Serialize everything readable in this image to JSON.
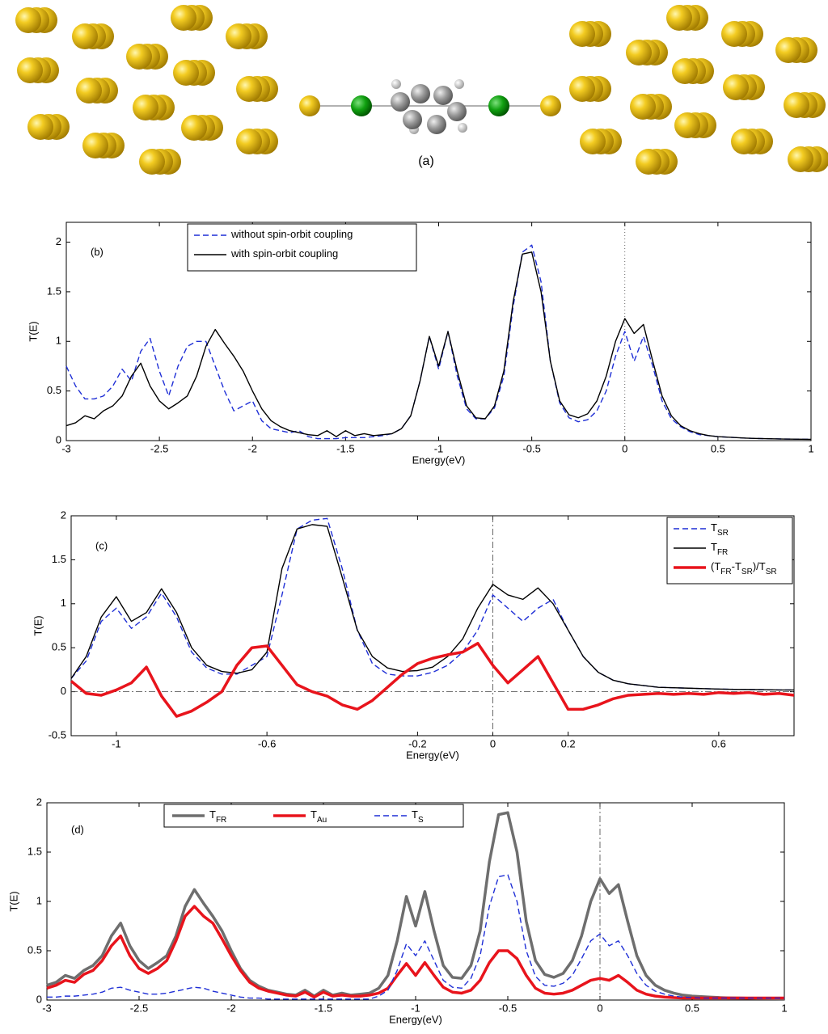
{
  "caption": "(a)",
  "chart_data": [
    {
      "type": "line",
      "label": "(b)",
      "xlabel": "Energy(eV)",
      "ylabel": "T(E)",
      "xlim": [
        -3,
        1
      ],
      "ylim": [
        0,
        2.2
      ],
      "xticks": [
        -3,
        -2.5,
        -2,
        -1.5,
        -1,
        -0.5,
        0,
        0.5,
        1
      ],
      "yticks": [
        0,
        0.5,
        1,
        1.5,
        2
      ],
      "legend": "upper left",
      "ref_lines": [
        {
          "x": 0,
          "style": "dotted"
        }
      ],
      "x": [
        -3,
        -2.95,
        -2.9,
        -2.85,
        -2.8,
        -2.75,
        -2.7,
        -2.65,
        -2.6,
        -2.55,
        -2.5,
        -2.45,
        -2.4,
        -2.35,
        -2.3,
        -2.25,
        -2.2,
        -2.15,
        -2.1,
        -2.05,
        -2,
        -1.95,
        -1.9,
        -1.85,
        -1.8,
        -1.75,
        -1.7,
        -1.65,
        -1.6,
        -1.55,
        -1.5,
        -1.45,
        -1.4,
        -1.35,
        -1.3,
        -1.25,
        -1.2,
        -1.15,
        -1.1,
        -1.05,
        -1,
        -0.95,
        -0.9,
        -0.85,
        -0.8,
        -0.75,
        -0.7,
        -0.65,
        -0.6,
        -0.55,
        -0.5,
        -0.45,
        -0.4,
        -0.35,
        -0.3,
        -0.25,
        -0.2,
        -0.15,
        -0.1,
        -0.05,
        0,
        0.05,
        0.1,
        0.15,
        0.2,
        0.25,
        0.3,
        0.35,
        0.4,
        0.45,
        0.5,
        0.55,
        0.6,
        0.65,
        0.7,
        0.75,
        0.8,
        0.85,
        0.9,
        0.95,
        1
      ],
      "series": [
        {
          "name": "without spin-orbit coupling",
          "color": "#1f2fd6",
          "linestyle": "dashed",
          "values": [
            0.75,
            0.55,
            0.42,
            0.42,
            0.45,
            0.55,
            0.72,
            0.6,
            0.9,
            1.03,
            0.7,
            0.45,
            0.75,
            0.95,
            1.0,
            1.0,
            0.75,
            0.5,
            0.3,
            0.35,
            0.4,
            0.2,
            0.12,
            0.1,
            0.08,
            0.1,
            0.04,
            0.02,
            0.02,
            0.02,
            0.03,
            0.03,
            0.03,
            0.04,
            0.05,
            0.07,
            0.12,
            0.25,
            0.6,
            1.05,
            0.72,
            1.1,
            0.65,
            0.32,
            0.22,
            0.22,
            0.33,
            0.65,
            1.35,
            1.9,
            1.97,
            1.6,
            0.8,
            0.38,
            0.23,
            0.19,
            0.21,
            0.3,
            0.5,
            0.85,
            1.1,
            0.8,
            1.05,
            0.75,
            0.4,
            0.22,
            0.14,
            0.09,
            0.06,
            0.05,
            0.04,
            0.035,
            0.03,
            0.025,
            0.022,
            0.02,
            0.018,
            0.016,
            0.015,
            0.014,
            0.013
          ]
        },
        {
          "name": "with spin-orbit coupling",
          "color": "#000000",
          "linestyle": "solid",
          "values": [
            0.15,
            0.18,
            0.25,
            0.22,
            0.3,
            0.35,
            0.45,
            0.65,
            0.78,
            0.55,
            0.4,
            0.32,
            0.38,
            0.45,
            0.65,
            0.95,
            1.12,
            0.98,
            0.85,
            0.7,
            0.5,
            0.32,
            0.2,
            0.14,
            0.1,
            0.08,
            0.06,
            0.05,
            0.1,
            0.04,
            0.1,
            0.05,
            0.07,
            0.05,
            0.06,
            0.07,
            0.12,
            0.25,
            0.6,
            1.05,
            0.75,
            1.1,
            0.7,
            0.35,
            0.23,
            0.22,
            0.35,
            0.7,
            1.4,
            1.88,
            1.9,
            1.5,
            0.8,
            0.4,
            0.26,
            0.23,
            0.27,
            0.4,
            0.65,
            1.0,
            1.23,
            1.08,
            1.17,
            0.8,
            0.45,
            0.25,
            0.15,
            0.1,
            0.07,
            0.05,
            0.04,
            0.035,
            0.03,
            0.025,
            0.022,
            0.02,
            0.018,
            0.016,
            0.015,
            0.014,
            0.013
          ]
        }
      ]
    },
    {
      "type": "line",
      "label": "(c)",
      "xlabel": "Energy(eV)",
      "ylabel": "T(E)",
      "xlim": [
        -1.12,
        0.8
      ],
      "ylim": [
        -0.5,
        2
      ],
      "xticks": [
        -1,
        -0.6,
        -0.2,
        0,
        0.2,
        0.6
      ],
      "yticks": [
        -0.5,
        0,
        0.5,
        1,
        1.5,
        2
      ],
      "legend": "upper right",
      "ref_lines": [
        {
          "x": 0,
          "style": "dashdot"
        },
        {
          "y": 0,
          "style": "dashdot"
        }
      ],
      "x": [
        -1.12,
        -1.08,
        -1.04,
        -1,
        -0.96,
        -0.92,
        -0.88,
        -0.84,
        -0.8,
        -0.76,
        -0.72,
        -0.68,
        -0.64,
        -0.6,
        -0.56,
        -0.52,
        -0.48,
        -0.44,
        -0.4,
        -0.36,
        -0.32,
        -0.28,
        -0.24,
        -0.2,
        -0.16,
        -0.12,
        -0.08,
        -0.04,
        0,
        0.04,
        0.08,
        0.12,
        0.16,
        0.2,
        0.24,
        0.28,
        0.32,
        0.36,
        0.4,
        0.44,
        0.48,
        0.52,
        0.56,
        0.6,
        0.64,
        0.68,
        0.72,
        0.76,
        0.8
      ],
      "series": [
        {
          "name": "T_{SR}",
          "color": "#1f2fd6",
          "linestyle": "dashed",
          "values": [
            0.15,
            0.35,
            0.8,
            0.95,
            0.72,
            0.85,
            1.12,
            0.85,
            0.45,
            0.27,
            0.2,
            0.2,
            0.3,
            0.4,
            1.1,
            1.85,
            1.95,
            1.97,
            1.4,
            0.7,
            0.32,
            0.2,
            0.18,
            0.18,
            0.22,
            0.3,
            0.45,
            0.7,
            1.1,
            0.95,
            0.8,
            0.95,
            1.05,
            0.7,
            0.4,
            0.22,
            0.13,
            0.09,
            0.07,
            0.05,
            0.045,
            0.04,
            0.035,
            0.03,
            0.027,
            0.025,
            0.023,
            0.02,
            0.02
          ]
        },
        {
          "name": "T_{FR}",
          "color": "#000000",
          "linestyle": "solid",
          "values": [
            0.15,
            0.4,
            0.85,
            1.08,
            0.8,
            0.9,
            1.17,
            0.9,
            0.5,
            0.3,
            0.23,
            0.21,
            0.25,
            0.45,
            1.4,
            1.85,
            1.9,
            1.88,
            1.3,
            0.7,
            0.4,
            0.27,
            0.23,
            0.24,
            0.28,
            0.4,
            0.6,
            0.95,
            1.22,
            1.1,
            1.05,
            1.18,
            1.0,
            0.7,
            0.4,
            0.22,
            0.13,
            0.09,
            0.07,
            0.05,
            0.045,
            0.04,
            0.035,
            0.03,
            0.027,
            0.025,
            0.023,
            0.02,
            0.02
          ]
        },
        {
          "name": "(T_{FR}-T_{SR})/T_{SR}",
          "color": "#e8141c",
          "linestyle": "thick",
          "values": [
            0.12,
            -0.02,
            -0.04,
            0.02,
            0.1,
            0.28,
            -0.05,
            -0.28,
            -0.22,
            -0.12,
            0.0,
            0.3,
            0.5,
            0.52,
            0.3,
            0.08,
            0.0,
            -0.05,
            -0.15,
            -0.2,
            -0.1,
            0.05,
            0.2,
            0.32,
            0.38,
            0.42,
            0.45,
            0.55,
            0.3,
            0.1,
            0.25,
            0.4,
            0.1,
            -0.2,
            -0.2,
            -0.15,
            -0.08,
            -0.04,
            -0.03,
            -0.02,
            -0.03,
            -0.02,
            -0.03,
            -0.01,
            -0.02,
            -0.01,
            -0.03,
            -0.02,
            -0.04
          ]
        }
      ]
    },
    {
      "type": "line",
      "label": "(d)",
      "xlabel": "Energy(eV)",
      "ylabel": "T(E)",
      "xlim": [
        -3,
        1
      ],
      "ylim": [
        0,
        2
      ],
      "xticks": [
        -3,
        -2.5,
        -2,
        -1.5,
        -1,
        -0.5,
        0,
        0.5,
        1
      ],
      "yticks": [
        0,
        0.5,
        1,
        1.5,
        2
      ],
      "legend": "upper center",
      "ref_lines": [
        {
          "x": 0,
          "style": "dashdot"
        }
      ],
      "x": [
        -3,
        -2.95,
        -2.9,
        -2.85,
        -2.8,
        -2.75,
        -2.7,
        -2.65,
        -2.6,
        -2.55,
        -2.5,
        -2.45,
        -2.4,
        -2.35,
        -2.3,
        -2.25,
        -2.2,
        -2.15,
        -2.1,
        -2.05,
        -2,
        -1.95,
        -1.9,
        -1.85,
        -1.8,
        -1.75,
        -1.7,
        -1.65,
        -1.6,
        -1.55,
        -1.5,
        -1.45,
        -1.4,
        -1.35,
        -1.3,
        -1.25,
        -1.2,
        -1.15,
        -1.1,
        -1.05,
        -1,
        -0.95,
        -0.9,
        -0.85,
        -0.8,
        -0.75,
        -0.7,
        -0.65,
        -0.6,
        -0.55,
        -0.5,
        -0.45,
        -0.4,
        -0.35,
        -0.3,
        -0.25,
        -0.2,
        -0.15,
        -0.1,
        -0.05,
        0,
        0.05,
        0.1,
        0.15,
        0.2,
        0.25,
        0.3,
        0.35,
        0.4,
        0.45,
        0.5,
        0.55,
        0.6,
        0.65,
        0.7,
        0.75,
        0.8,
        0.85,
        0.9,
        0.95,
        1
      ],
      "series": [
        {
          "name": "T_{FR}",
          "color": "#6e6e6e",
          "linestyle": "thick",
          "values": [
            0.15,
            0.18,
            0.25,
            0.22,
            0.3,
            0.35,
            0.45,
            0.65,
            0.78,
            0.55,
            0.4,
            0.32,
            0.38,
            0.45,
            0.65,
            0.95,
            1.12,
            0.98,
            0.85,
            0.7,
            0.5,
            0.32,
            0.2,
            0.14,
            0.1,
            0.08,
            0.06,
            0.05,
            0.1,
            0.04,
            0.1,
            0.05,
            0.07,
            0.05,
            0.06,
            0.07,
            0.12,
            0.25,
            0.6,
            1.05,
            0.75,
            1.1,
            0.7,
            0.35,
            0.23,
            0.22,
            0.35,
            0.7,
            1.4,
            1.88,
            1.9,
            1.5,
            0.8,
            0.4,
            0.26,
            0.23,
            0.27,
            0.4,
            0.65,
            1.0,
            1.23,
            1.08,
            1.17,
            0.8,
            0.45,
            0.25,
            0.15,
            0.1,
            0.07,
            0.05,
            0.04,
            0.035,
            0.03,
            0.025,
            0.022,
            0.02,
            0.018,
            0.016,
            0.015,
            0.014,
            0.013
          ]
        },
        {
          "name": "T_{Au}",
          "color": "#e8141c",
          "linestyle": "thick",
          "values": [
            0.12,
            0.15,
            0.2,
            0.18,
            0.26,
            0.3,
            0.4,
            0.55,
            0.65,
            0.45,
            0.32,
            0.27,
            0.32,
            0.4,
            0.6,
            0.85,
            0.95,
            0.85,
            0.78,
            0.62,
            0.45,
            0.3,
            0.18,
            0.12,
            0.09,
            0.07,
            0.05,
            0.04,
            0.08,
            0.03,
            0.08,
            0.04,
            0.05,
            0.04,
            0.04,
            0.05,
            0.07,
            0.12,
            0.25,
            0.37,
            0.25,
            0.38,
            0.25,
            0.13,
            0.08,
            0.07,
            0.1,
            0.2,
            0.38,
            0.5,
            0.5,
            0.42,
            0.25,
            0.12,
            0.07,
            0.06,
            0.07,
            0.1,
            0.15,
            0.2,
            0.22,
            0.2,
            0.25,
            0.18,
            0.1,
            0.06,
            0.04,
            0.03,
            0.025,
            0.02,
            0.02,
            0.02,
            0.02,
            0.02,
            0.02,
            0.02,
            0.02,
            0.02,
            0.02,
            0.02,
            0.02
          ]
        },
        {
          "name": "T_{S}",
          "color": "#1f2fd6",
          "linestyle": "dashed",
          "values": [
            0.03,
            0.03,
            0.04,
            0.04,
            0.05,
            0.06,
            0.08,
            0.12,
            0.13,
            0.1,
            0.08,
            0.06,
            0.06,
            0.07,
            0.09,
            0.11,
            0.13,
            0.12,
            0.09,
            0.07,
            0.05,
            0.03,
            0.02,
            0.02,
            0.01,
            0.01,
            0.01,
            0.01,
            0.01,
            0.01,
            0.01,
            0.01,
            0.01,
            0.01,
            0.01,
            0.01,
            0.04,
            0.1,
            0.3,
            0.57,
            0.45,
            0.6,
            0.4,
            0.2,
            0.13,
            0.12,
            0.22,
            0.45,
            0.95,
            1.25,
            1.27,
            1.0,
            0.5,
            0.24,
            0.15,
            0.14,
            0.17,
            0.25,
            0.42,
            0.6,
            0.67,
            0.55,
            0.6,
            0.45,
            0.27,
            0.15,
            0.09,
            0.06,
            0.04,
            0.03,
            0.025,
            0.02,
            0.02,
            0.02,
            0.02,
            0.02,
            0.02,
            0.02,
            0.02,
            0.02,
            0.02
          ]
        }
      ]
    }
  ]
}
